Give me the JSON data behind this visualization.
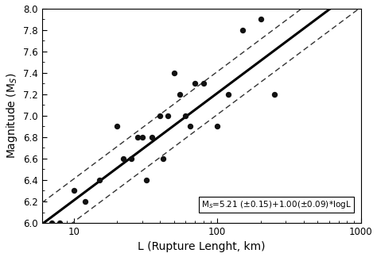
{
  "scatter_x": [
    7,
    8,
    10,
    12,
    15,
    20,
    22,
    25,
    28,
    30,
    32,
    35,
    40,
    42,
    45,
    50,
    55,
    60,
    65,
    70,
    80,
    100,
    120,
    150,
    200,
    250
  ],
  "scatter_y": [
    6.0,
    6.0,
    6.3,
    6.2,
    6.4,
    6.9,
    6.6,
    6.6,
    6.8,
    6.8,
    6.4,
    6.8,
    7.0,
    6.6,
    7.0,
    7.4,
    7.2,
    7.0,
    6.9,
    7.3,
    7.3,
    6.9,
    7.2,
    7.8,
    7.9,
    7.2
  ],
  "fit_intercept": 5.21,
  "fit_slope": 1.0,
  "sigma": 0.2,
  "xlim_data": [
    6,
    1000
  ],
  "xlim_display": [
    6,
    1000
  ],
  "ylim": [
    6.0,
    8.0
  ],
  "yticks": [
    6.0,
    6.2,
    6.4,
    6.6,
    6.8,
    7.0,
    7.2,
    7.4,
    7.6,
    7.8,
    8.0
  ],
  "xlabel": "L (Rupture Lenght, km)",
  "ylabel": "Magnitude (M$_S$)",
  "equation": "M$_S$=5.21 (±0.15)+1.00(±0.09)*logL",
  "dot_color": "#111111",
  "line_color": "#000000",
  "dash_color": "#333333",
  "bg_color": "#ffffff",
  "scatter_size": 28,
  "figsize": [
    4.74,
    3.24
  ],
  "dpi": 100
}
